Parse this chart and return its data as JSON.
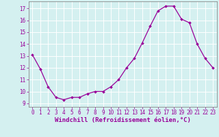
{
  "x": [
    0,
    1,
    2,
    3,
    4,
    5,
    6,
    7,
    8,
    9,
    10,
    11,
    12,
    13,
    14,
    15,
    16,
    17,
    18,
    19,
    20,
    21,
    22,
    23
  ],
  "y": [
    13.1,
    11.9,
    10.4,
    9.5,
    9.3,
    9.5,
    9.5,
    9.8,
    10.0,
    10.0,
    10.4,
    11.0,
    12.0,
    12.8,
    14.1,
    15.5,
    16.8,
    17.2,
    17.2,
    16.1,
    15.8,
    14.0,
    12.8,
    12.0
  ],
  "line_color": "#990099",
  "marker": "D",
  "markersize": 2.0,
  "linewidth": 0.9,
  "xlabel": "Windchill (Refroidissement éolien,°C)",
  "xlabel_fontsize": 6.5,
  "xlabel_color": "#990099",
  "ylabel_ticks": [
    9,
    10,
    11,
    12,
    13,
    14,
    15,
    16,
    17
  ],
  "xlim": [
    -0.5,
    23.5
  ],
  "ylim": [
    8.7,
    17.6
  ],
  "background_color": "#d4f0f0",
  "grid_color": "#ffffff",
  "tick_color": "#990099",
  "tick_fontsize": 5.5,
  "spine_color": "#888888"
}
